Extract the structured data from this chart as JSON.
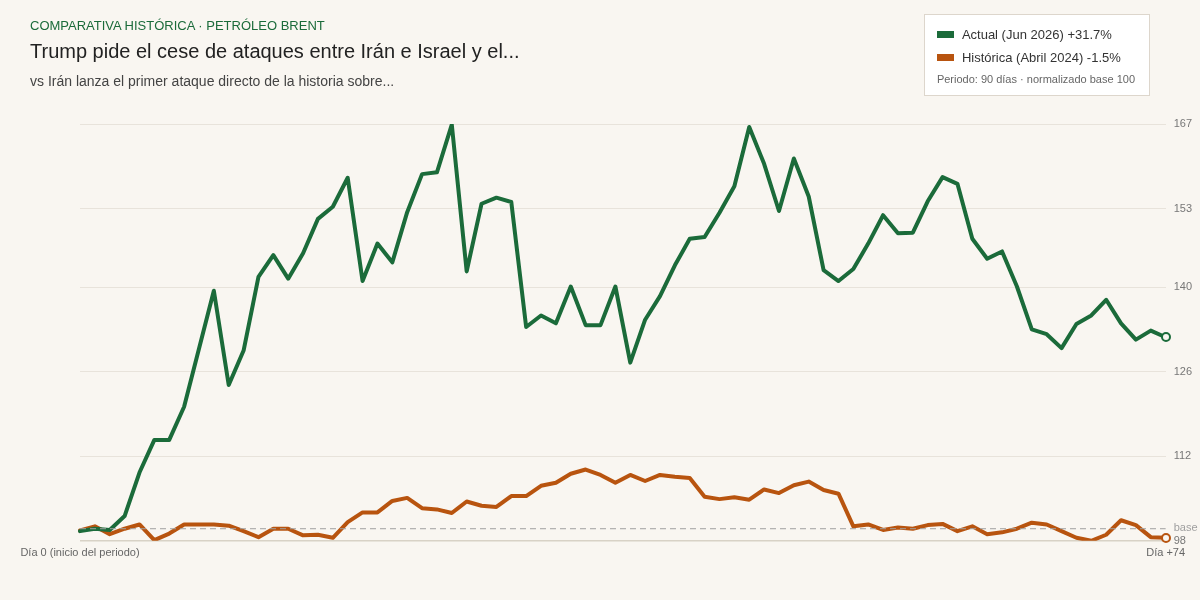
{
  "chart_data": {
    "type": "line",
    "title": "Trump pide el cese de ataques entre Irán e Israel y el...",
    "subtitle": "vs Irán lanza el primer ataque directo de la historia sobre...",
    "annotations": [
      "COMPARATIVA HISTÓRICA · PETRÓLEO BRENT",
      "Periodo: 90 días · normalizado base 100"
    ],
    "categories": [
      "Día 0 (inicio del periodo)",
      null,
      null,
      null,
      null,
      null,
      null,
      null,
      null,
      null,
      null,
      null,
      null,
      null,
      null,
      null,
      null,
      null,
      null,
      null,
      null,
      null,
      null,
      null,
      null,
      null,
      null,
      null,
      null,
      null,
      null,
      null,
      null,
      null,
      null,
      null,
      null,
      null,
      null,
      null,
      null,
      null,
      null,
      null,
      null,
      null,
      null,
      null,
      null,
      null,
      null,
      null,
      null,
      null,
      null,
      null,
      null,
      null,
      null,
      null,
      null,
      null,
      null,
      null,
      null,
      null,
      null,
      null,
      null,
      null,
      null,
      null,
      null,
      "Día +74"
    ],
    "series": [
      {
        "name": "Actual (Jun 2026) +31.7%",
        "color": "#1b6b3a",
        "values": [
          99.6,
          100.0,
          99.8,
          102.1,
          109.3,
          114.7,
          114.7,
          120.2,
          129.8,
          139.4,
          123.8,
          129.5,
          141.7,
          145.3,
          141.4,
          145.6,
          151.3,
          153.3,
          158.1,
          141.0,
          147.2,
          144.1,
          152.4,
          158.7,
          159.0,
          166.9,
          142.6,
          153.8,
          154.8,
          154.1,
          133.4,
          135.3,
          134.0,
          140.1,
          133.7,
          133.7,
          140.1,
          127.5,
          134.6,
          138.5,
          143.6,
          148.0,
          148.3,
          152.3,
          156.7,
          166.5,
          160.4,
          152.6,
          161.3,
          155.0,
          142.8,
          141.0,
          143.0,
          147.2,
          151.9,
          148.9,
          149.0,
          154.2,
          158.2,
          157.1,
          148.0,
          144.7,
          145.9,
          140.1,
          133.0,
          132.2,
          129.9,
          133.9,
          135.3,
          137.9,
          134.0,
          131.3,
          132.8,
          131.7
        ]
      },
      {
        "name": "Histórica (Abril 2024) -1.5%",
        "color": "#b8540f",
        "values": [
          99.7,
          100.4,
          99.1,
          100.0,
          100.7,
          98.1,
          99.2,
          100.7,
          100.7,
          100.7,
          100.5,
          99.6,
          98.6,
          100.0,
          100.0,
          98.9,
          99.0,
          98.5,
          101.1,
          102.7,
          102.7,
          104.6,
          105.1,
          103.4,
          103.2,
          102.6,
          104.5,
          103.8,
          103.6,
          105.4,
          105.4,
          107.1,
          107.6,
          109.1,
          109.8,
          108.9,
          107.6,
          108.9,
          107.9,
          108.9,
          108.6,
          108.4,
          105.3,
          104.9,
          105.2,
          104.8,
          106.5,
          105.9,
          107.2,
          107.8,
          106.4,
          105.8,
          100.4,
          100.7,
          99.8,
          100.2,
          100.0,
          100.6,
          100.8,
          99.6,
          100.4,
          99.1,
          99.4,
          100.0,
          101.0,
          100.7,
          99.6,
          98.5,
          98.0,
          99.0,
          101.4,
          100.6,
          98.6,
          98.5
        ]
      }
    ],
    "ylim": [
      98,
      167
    ],
    "yticks": [
      98,
      112,
      126,
      140,
      153,
      167
    ],
    "ref_lines": [
      {
        "axis": "y",
        "value": 100,
        "label": "base",
        "color": "#a0a0a0",
        "line_style": "dashed"
      }
    ],
    "grid": "y",
    "legend": "top right",
    "marker": "none",
    "line_style": "solid"
  }
}
